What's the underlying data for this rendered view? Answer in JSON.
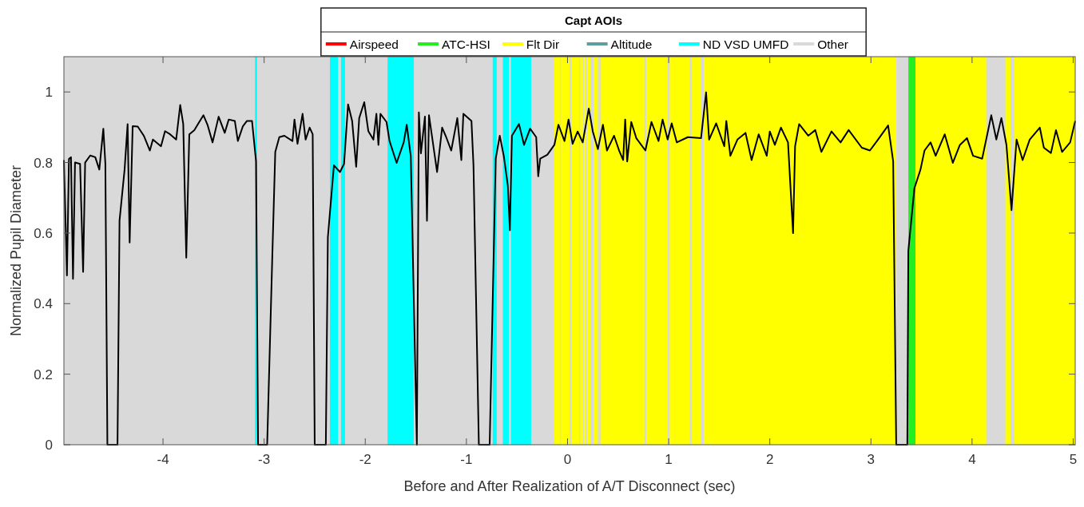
{
  "chart_data": {
    "type": "line",
    "xlabel": "Before and After Realization of A/T Disconnect (sec)",
    "ylabel": "Normalized Pupil Diameter",
    "legend_title": "Capt AOIs",
    "legend": "top",
    "grid": false,
    "xlim": [
      -4.98,
      5.02
    ],
    "xticks": [
      -4,
      -3,
      -2,
      -1,
      0,
      1,
      2,
      3,
      4,
      5
    ],
    "ylim": [
      0,
      1.1
    ],
    "yticks": [
      0,
      0.2,
      0.4,
      0.6,
      0.8,
      1
    ],
    "bands": [
      {
        "axis": "x",
        "from": -4.98,
        "to": 5.02,
        "color": "#d9d9d9"
      },
      {
        "axis": "x",
        "from": -3.09,
        "to": -3.07,
        "color": "#00ffff"
      },
      {
        "axis": "x",
        "from": -2.35,
        "to": -2.27,
        "color": "#00ffff"
      },
      {
        "axis": "x",
        "from": -2.24,
        "to": -2.2,
        "color": "#00ffff"
      },
      {
        "axis": "x",
        "from": -1.78,
        "to": -1.52,
        "color": "#00ffff"
      },
      {
        "axis": "x",
        "from": -0.74,
        "to": -0.7,
        "color": "#00ffff"
      },
      {
        "axis": "x",
        "from": -0.64,
        "to": -0.58,
        "color": "#00ffff"
      },
      {
        "axis": "x",
        "from": -0.56,
        "to": -0.36,
        "color": "#00ffff"
      },
      {
        "axis": "x",
        "from": -0.13,
        "to": -0.075,
        "color": "#ffff00"
      },
      {
        "axis": "x",
        "from": -0.065,
        "to": 0.02,
        "color": "#ffff00"
      },
      {
        "axis": "x",
        "from": 0.04,
        "to": 0.115,
        "color": "#ffff00"
      },
      {
        "axis": "x",
        "from": 0.125,
        "to": 0.155,
        "color": "#ffff00"
      },
      {
        "axis": "x",
        "from": 0.165,
        "to": 0.185,
        "color": "#ffff00"
      },
      {
        "axis": "x",
        "from": 0.195,
        "to": 0.23,
        "color": "#ffff00"
      },
      {
        "axis": "x",
        "from": 0.26,
        "to": 0.3,
        "color": "#ffff00"
      },
      {
        "axis": "x",
        "from": 0.33,
        "to": 0.76,
        "color": "#ffff00"
      },
      {
        "axis": "x",
        "from": 0.78,
        "to": 0.99,
        "color": "#ffff00"
      },
      {
        "axis": "x",
        "from": 1.01,
        "to": 1.21,
        "color": "#ffff00"
      },
      {
        "axis": "x",
        "from": 1.23,
        "to": 1.32,
        "color": "#ffff00"
      },
      {
        "axis": "x",
        "from": 1.35,
        "to": 3.25,
        "color": "#ffff00"
      },
      {
        "axis": "x",
        "from": 3.37,
        "to": 3.44,
        "color": "#22ee22"
      },
      {
        "axis": "x",
        "from": 3.44,
        "to": 4.14,
        "color": "#ffff00"
      },
      {
        "axis": "x",
        "from": 4.33,
        "to": 4.38,
        "color": "#ffff00"
      },
      {
        "axis": "x",
        "from": 4.42,
        "to": 5.02,
        "color": "#ffff00"
      }
    ],
    "series": [
      {
        "color": "#000000",
        "x": [
          -4.98,
          -4.95,
          -4.93,
          -4.91,
          -4.89,
          -4.87,
          -4.82,
          -4.79,
          -4.77,
          -4.72,
          -4.67,
          -4.63,
          -4.59,
          -4.57,
          -4.55,
          -4.45,
          -4.43,
          -4.38,
          -4.35,
          -4.33,
          -4.3,
          -4.25,
          -4.19,
          -4.13,
          -4.1,
          -4.02,
          -3.98,
          -3.93,
          -3.87,
          -3.83,
          -3.8,
          -3.77,
          -3.74,
          -3.69,
          -3.65,
          -3.6,
          -3.56,
          -3.51,
          -3.45,
          -3.39,
          -3.35,
          -3.29,
          -3.26,
          -3.21,
          -3.17,
          -3.12,
          -3.08,
          -3.06,
          -2.97,
          -2.92,
          -2.89,
          -2.85,
          -2.8,
          -2.72,
          -2.7,
          -2.67,
          -2.62,
          -2.59,
          -2.55,
          -2.52,
          -2.5,
          -2.39,
          -2.37,
          -2.31,
          -2.25,
          -2.21,
          -2.17,
          -2.13,
          -2.09,
          -2.06,
          -2.01,
          -1.97,
          -1.92,
          -1.89,
          -1.87,
          -1.85,
          -1.79,
          -1.76,
          -1.69,
          -1.62,
          -1.59,
          -1.55,
          -1.49,
          -1.47,
          -1.45,
          -1.41,
          -1.39,
          -1.37,
          -1.29,
          -1.24,
          -1.2,
          -1.15,
          -1.09,
          -1.05,
          -1.03,
          -0.95,
          -0.93,
          -0.877,
          -0.77,
          -0.71,
          -0.67,
          -0.63,
          -0.59,
          -0.57,
          -0.55,
          -0.48,
          -0.43,
          -0.37,
          -0.31,
          -0.29,
          -0.27,
          -0.2,
          -0.13,
          -0.09,
          -0.03,
          0.01,
          0.05,
          0.1,
          0.15,
          0.21,
          0.25,
          0.3,
          0.35,
          0.39,
          0.46,
          0.51,
          0.55,
          0.57,
          0.59,
          0.63,
          0.68,
          0.77,
          0.83,
          0.9,
          0.94,
          0.99,
          1.03,
          1.08,
          1.19,
          1.32,
          1.37,
          1.4,
          1.47,
          1.55,
          1.57,
          1.61,
          1.68,
          1.76,
          1.82,
          1.89,
          1.97,
          2,
          2.05,
          2.11,
          2.18,
          2.23,
          2.25,
          2.29,
          2.38,
          2.45,
          2.51,
          2.61,
          2.7,
          2.78,
          2.91,
          2.99,
          3.07,
          3.17,
          3.22,
          3.25,
          3.36,
          3.37,
          3.43,
          3.49,
          3.53,
          3.59,
          3.64,
          3.73,
          3.81,
          3.88,
          3.95,
          4.01,
          4.1,
          4.19,
          4.24,
          4.29,
          4.34,
          4.39,
          4.44,
          4.5,
          4.57,
          4.67,
          4.71,
          4.78,
          4.83,
          4.89,
          4.97,
          5.02
        ],
        "values": [
          0.807,
          0.48,
          0.81,
          0.815,
          0.47,
          0.8,
          0.796,
          0.49,
          0.8,
          0.82,
          0.815,
          0.78,
          0.896,
          0.796,
          0,
          0,
          0.635,
          0.78,
          0.909,
          0.573,
          0.903,
          0.902,
          0.876,
          0.834,
          0.865,
          0.846,
          0.889,
          0.88,
          0.865,
          0.963,
          0.909,
          0.53,
          0.88,
          0.892,
          0.911,
          0.934,
          0.907,
          0.857,
          0.93,
          0.884,
          0.922,
          0.918,
          0.861,
          0.903,
          0.918,
          0.918,
          0.803,
          0,
          0,
          0.527,
          0.83,
          0.872,
          0.876,
          0.861,
          0.922,
          0.853,
          0.938,
          0.865,
          0.899,
          0.88,
          0,
          0,
          0.588,
          0.792,
          0.773,
          0.796,
          0.965,
          0.918,
          0.788,
          0.926,
          0.971,
          0.889,
          0.865,
          0.938,
          0.85,
          0.938,
          0.915,
          0.861,
          0.799,
          0.857,
          0.907,
          0.818,
          0,
          0.942,
          0.826,
          0.93,
          0.635,
          0.934,
          0.773,
          0.899,
          0.872,
          0.834,
          0.926,
          0.807,
          0.938,
          0.918,
          0.792,
          0,
          0,
          0.811,
          0.876,
          0.818,
          0.734,
          0.608,
          0.876,
          0.909,
          0.85,
          0.896,
          0.872,
          0.761,
          0.811,
          0.822,
          0.85,
          0.907,
          0.861,
          0.922,
          0.853,
          0.888,
          0.857,
          0.953,
          0.888,
          0.838,
          0.907,
          0.834,
          0.876,
          0.834,
          0.807,
          0.922,
          0.803,
          0.915,
          0.869,
          0.834,
          0.915,
          0.861,
          0.922,
          0.865,
          0.911,
          0.857,
          0.872,
          0.869,
          0.999,
          0.865,
          0.911,
          0.846,
          0.918,
          0.819,
          0.865,
          0.884,
          0.807,
          0.88,
          0.819,
          0.888,
          0.85,
          0.899,
          0.857,
          0.6,
          0.846,
          0.909,
          0.876,
          0.892,
          0.83,
          0.888,
          0.857,
          0.892,
          0.842,
          0.834,
          0.865,
          0.905,
          0.803,
          0,
          0,
          0.55,
          0.727,
          0.78,
          0.834,
          0.857,
          0.819,
          0.88,
          0.799,
          0.85,
          0.869,
          0.819,
          0.811,
          0.934,
          0.865,
          0.926,
          0.85,
          0.665,
          0.865,
          0.807,
          0.865,
          0.899,
          0.842,
          0.827,
          0.892,
          0.83,
          0.857,
          0.918
        ]
      },
      {
        "name": "Airspeed",
        "color": "#ff0000"
      },
      {
        "name": "ATC-HSI",
        "color": "#22ee22"
      },
      {
        "name": "Flt Dir",
        "color": "#ffff00"
      },
      {
        "name": "Altitude",
        "color": "#5f9ea0"
      },
      {
        "name": "ND VSD UMFD",
        "color": "#00ffff"
      },
      {
        "name": "Other",
        "color": "#d9d9d9"
      }
    ]
  }
}
